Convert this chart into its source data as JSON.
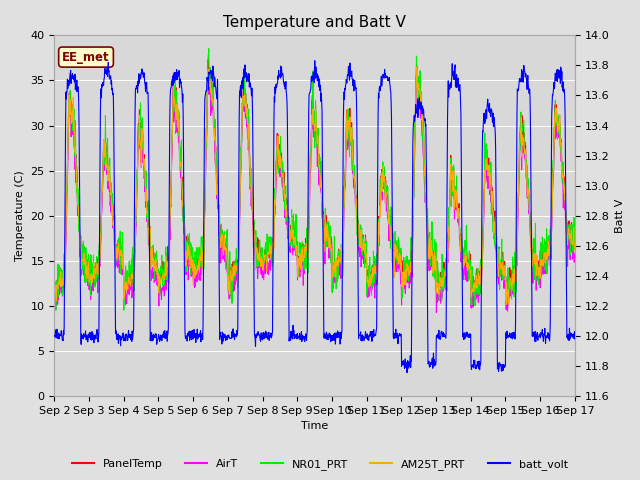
{
  "title": "Temperature and Batt V",
  "xlabel": "Time",
  "ylabel_left": "Temperature (C)",
  "ylabel_right": "Batt V",
  "annotation": "EE_met",
  "ylim_left": [
    0,
    40
  ],
  "ylim_right": [
    11.6,
    14.0
  ],
  "x_ticks": [
    "Sep 2",
    "Sep 3",
    "Sep 4",
    "Sep 5",
    "Sep 6",
    "Sep 7",
    "Sep 8",
    "Sep 9",
    "Sep 10",
    "Sep 11",
    "Sep 12",
    "Sep 13",
    "Sep 14",
    "Sep 15",
    "Sep 16",
    "Sep 17"
  ],
  "series_colors": {
    "PanelTemp": "#ff0000",
    "AirT": "#ff00ff",
    "NR01_PRT": "#00ee00",
    "AM25T_PRT": "#ffaa00",
    "batt_volt": "#0000ff"
  },
  "background_color": "#e0e0e0",
  "plot_bg_color": "#e8e8e8",
  "inner_bg_color": "#d8d8d8",
  "title_fontsize": 11,
  "axis_fontsize": 8,
  "tick_fontsize": 8,
  "legend_fontsize": 8
}
